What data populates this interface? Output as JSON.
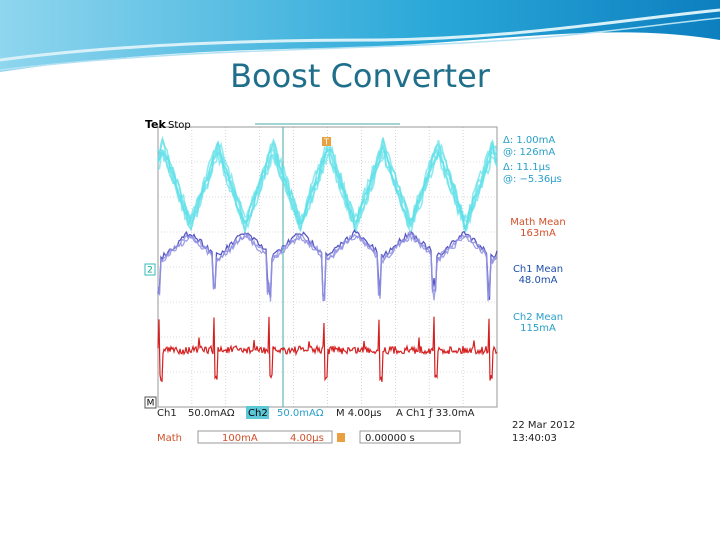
{
  "slide": {
    "title": "Boost Converter"
  },
  "scope": {
    "brand": "Tek",
    "status": "Stop",
    "trigger_marker": "T",
    "ch2_marker": "2",
    "math_marker": "M",
    "cursors": [
      "Δ:  1.00mA",
      "@:  126mA",
      "Δ:  11.1µs",
      "@: −5.36µs"
    ],
    "measurements": [
      {
        "label": "Math Mean",
        "value": "163mA"
      },
      {
        "label": "Ch1 Mean",
        "value": "48.0mA"
      },
      {
        "label": "Ch2 Mean",
        "value": "115mA"
      }
    ],
    "status_bar": {
      "ch1": "Ch1",
      "ch1_scale": "50.0mAΩ",
      "ch2": "Ch2",
      "ch2_scale": "50.0mAΩ",
      "timebase": "M 4.00µs",
      "trigger": "A  Ch1  ƒ  33.0mA",
      "date": "22 Mar  2012",
      "time": "13:40:03",
      "math": "Math",
      "math_scale": "100mA",
      "math_time": "4.00µs",
      "position": "0.00000 s"
    }
  }
}
